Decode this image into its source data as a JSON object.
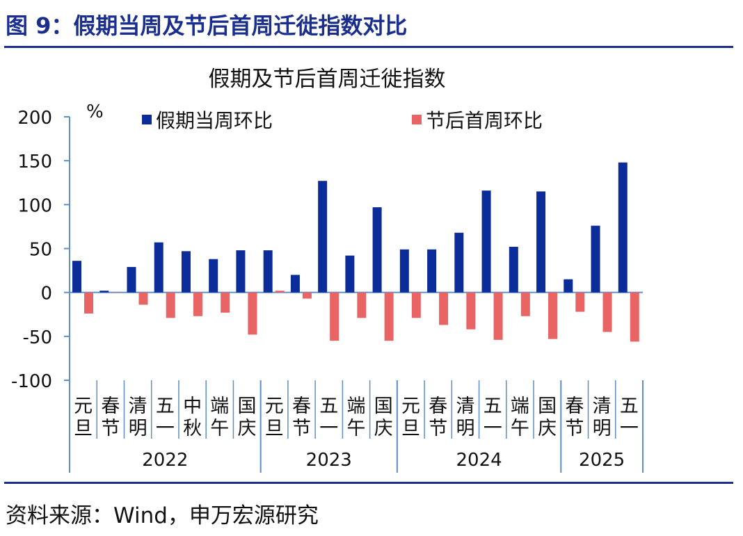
{
  "header": {
    "title": "图 9：假期当周及节后首周迁徙指数对比"
  },
  "footer": {
    "source": "资料来源：Wind，申万宏源研究"
  },
  "colors": {
    "brand": "#1a2e8f",
    "series_holiday": "#0b2c99",
    "series_post": "#e96464",
    "axis": "#5b8fc7"
  },
  "chart_data": {
    "type": "bar",
    "title": "假期及节后首周迁徙指数",
    "ylabel": "%",
    "ylim": [
      -100,
      200
    ],
    "yticks": [
      200,
      150,
      100,
      50,
      0,
      -50,
      -100
    ],
    "legend": "top",
    "grid": false,
    "categories": [
      "元旦",
      "春节",
      "清明",
      "五一",
      "中秋",
      "端午",
      "国庆",
      "元旦",
      "春节",
      "五一",
      "端午",
      "国庆",
      "元旦",
      "春节",
      "清明",
      "五一",
      "端午",
      "国庆",
      "春节",
      "清明",
      "五一"
    ],
    "groups": [
      {
        "label": "2022",
        "count": 7
      },
      {
        "label": "2023",
        "count": 5
      },
      {
        "label": "2024",
        "count": 6
      },
      {
        "label": "2025",
        "count": 3
      }
    ],
    "series": [
      {
        "name": "假期当周环比",
        "color": "#0b2c99",
        "values": [
          36,
          2,
          29,
          57,
          47,
          38,
          48,
          48,
          20,
          127,
          42,
          97,
          49,
          49,
          68,
          116,
          52,
          115,
          15,
          76,
          148
        ]
      },
      {
        "name": "节后首周环比",
        "color": "#e96464",
        "values": [
          -24,
          0,
          -14,
          -29,
          -27,
          -23,
          -48,
          2,
          -7,
          -55,
          -29,
          -55,
          -29,
          -37,
          -42,
          -54,
          -27,
          -53,
          -22,
          -45,
          -56
        ]
      }
    ]
  }
}
